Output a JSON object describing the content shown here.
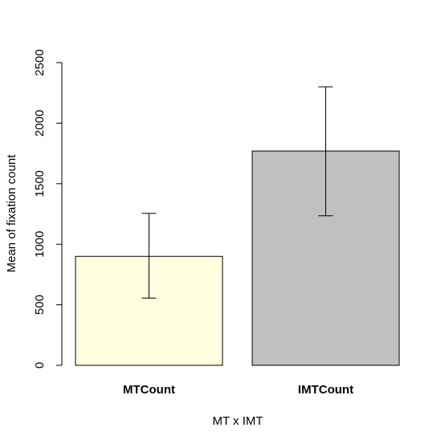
{
  "chart_data": {
    "type": "bar",
    "title": "",
    "xlabel": "MT x IMT",
    "ylabel": "Mean of fixation count",
    "categories": [
      "MTCount",
      "IMTCount"
    ],
    "values": [
      900,
      1770
    ],
    "error_bars": [
      {
        "low": 555,
        "high": 1255
      },
      {
        "low": 1235,
        "high": 2300
      }
    ],
    "colors": [
      "#ffffe0",
      "#c0c0c0"
    ],
    "ylim": [
      0,
      2500
    ],
    "yticks": [
      0,
      500,
      1000,
      1500,
      2000,
      2500
    ],
    "grid": false,
    "legend": "none"
  }
}
